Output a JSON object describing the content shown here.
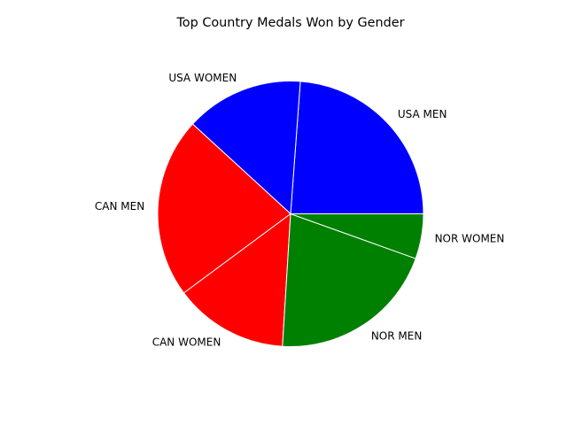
{
  "chart_data": {
    "type": "pie",
    "title": "Top Country Medals Won by Gender",
    "slices": [
      {
        "label": "USA MEN",
        "value": 24.4,
        "color": "#0000ff"
      },
      {
        "label": "USA WOMEN",
        "value": 14.7,
        "color": "#0000ff"
      },
      {
        "label": "CAN MEN",
        "value": 22.5,
        "color": "#ff0000"
      },
      {
        "label": "CAN WOMEN",
        "value": 14.2,
        "color": "#ff0000"
      },
      {
        "label": "NOR MEN",
        "value": 21.0,
        "color": "#008000"
      },
      {
        "label": "NOR WOMEN",
        "value": 5.6,
        "color": "#008000"
      }
    ],
    "start_angle_deg": 0,
    "direction": "counterclockwise",
    "wedge_edge_color": "#ffffff",
    "legend": "none"
  }
}
